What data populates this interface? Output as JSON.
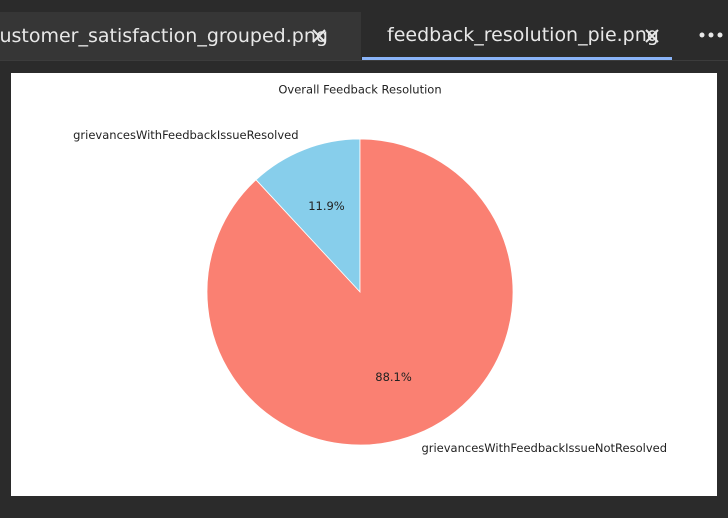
{
  "tabs": [
    {
      "title": "customer_satisfaction_grouped.png"
    },
    {
      "title": "feedback_resolution_pie.png"
    }
  ],
  "chart_data": {
    "type": "pie",
    "title": "Overall Feedback Resolution",
    "categories": [
      "grievancesWithFeedbackIssueResolved",
      "grievancesWithFeedbackIssueNotResolved"
    ],
    "values": [
      11.9,
      88.1
    ],
    "value_labels": [
      "11.9%",
      "88.1%"
    ],
    "colors": [
      "#87ceeb",
      "#fa8072"
    ]
  }
}
